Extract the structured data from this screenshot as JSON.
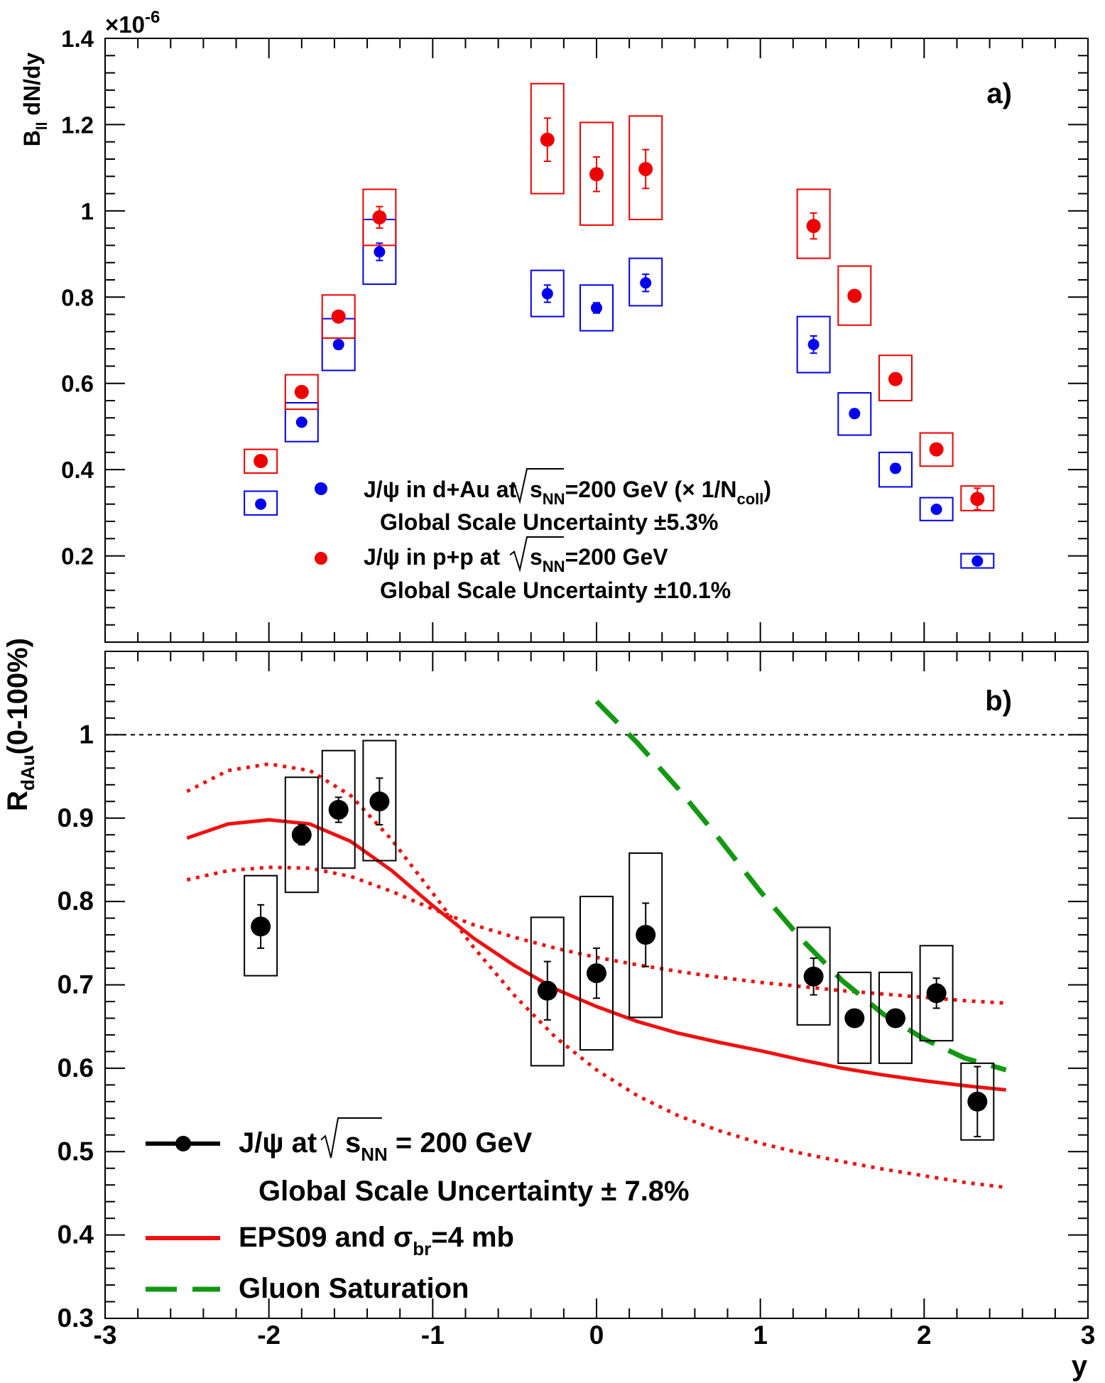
{
  "chart_data": [
    {
      "panel": "a)",
      "type": "scatter",
      "ylabel_main": "B",
      "ylabel_sub": "ll",
      "ylabel_rest": " dN/dy",
      "exponent_base": "×10",
      "exponent_power": "-6",
      "xlim": [
        -3,
        3
      ],
      "ylim": [
        0,
        1.4
      ],
      "yticks": [
        "0.2",
        "0.4",
        "0.6",
        "0.8",
        "1",
        "1.2",
        "1.4"
      ],
      "yticks_values": [
        0.2,
        0.4,
        0.6,
        0.8,
        1.0,
        1.2,
        1.4
      ],
      "series": [
        {
          "name": "J/ψ in d+Au at √sNN=200 GeV (× 1/Ncoll)",
          "color": "#0000ee",
          "x": [
            -2.05,
            -1.8,
            -1.575,
            -1.325,
            -0.3,
            0.0,
            0.3,
            1.325,
            1.575,
            1.825,
            2.075,
            2.325
          ],
          "y": [
            0.32,
            0.51,
            0.69,
            0.905,
            0.808,
            0.775,
            0.833,
            0.69,
            0.53,
            0.403,
            0.308,
            0.188
          ],
          "stat_err": [
            0.008,
            0.008,
            0.01,
            0.02,
            0.02,
            0.012,
            0.02,
            0.02,
            0.01,
            0.01,
            0.008,
            0.006
          ],
          "sys_box": [
            [
              0.295,
              0.35
            ],
            [
              0.465,
              0.555
            ],
            [
              0.63,
              0.75
            ],
            [
              0.83,
              0.98
            ],
            [
              0.755,
              0.862
            ],
            [
              0.722,
              0.828
            ],
            [
              0.78,
              0.89
            ],
            [
              0.625,
              0.755
            ],
            [
              0.48,
              0.578
            ],
            [
              0.36,
              0.44
            ],
            [
              0.282,
              0.335
            ],
            [
              0.172,
              0.205
            ]
          ]
        },
        {
          "name": "J/ψ in p+p at √sNN=200 GeV",
          "color": "#ee0000",
          "x": [
            -2.05,
            -1.8,
            -1.575,
            -1.325,
            -0.3,
            0.0,
            0.3,
            1.325,
            1.575,
            1.825,
            2.075,
            2.325
          ],
          "y": [
            0.42,
            0.58,
            0.755,
            0.985,
            1.165,
            1.085,
            1.097,
            0.965,
            0.803,
            0.61,
            0.447,
            0.332
          ],
          "stat_err": [
            0.008,
            0.01,
            0.01,
            0.025,
            0.05,
            0.04,
            0.045,
            0.03,
            0.01,
            0.01,
            0.01,
            0.025
          ],
          "sys_box": [
            [
              0.392,
              0.447
            ],
            [
              0.54,
              0.62
            ],
            [
              0.705,
              0.805
            ],
            [
              0.92,
              1.05
            ],
            [
              1.04,
              1.295
            ],
            [
              0.967,
              1.205
            ],
            [
              0.98,
              1.22
            ],
            [
              0.89,
              1.05
            ],
            [
              0.735,
              0.872
            ],
            [
              0.56,
              0.665
            ],
            [
              0.408,
              0.485
            ],
            [
              0.305,
              0.362
            ]
          ]
        }
      ],
      "legend": {
        "placement": "center-bottom",
        "entries": [
          {
            "color": "#0000ee",
            "pre": "J/ψ in d+Au at",
            "sub1": "s",
            "sub2": "NN",
            "post": "=200 GeV (× 1/N",
            "sub3": "coll",
            "end": ")",
            "note": "Global Scale Uncertainty ±5.3%"
          },
          {
            "color": "#ee0000",
            "pre": "J/ψ in p+p at",
            "sub1": "s",
            "sub2": "NN",
            "post": "=200 GeV",
            "note": "Global Scale Uncertainty ±10.1%"
          }
        ]
      }
    },
    {
      "panel": "b)",
      "type": "scatter",
      "ylabel_main": "R",
      "ylabel_sub": "dAu",
      "ylabel_rest": "(0-100%)",
      "xlabel": "y",
      "xlim": [
        -3,
        3
      ],
      "ylim": [
        0.3,
        1.1
      ],
      "xticks": [
        "-3",
        "-2",
        "-1",
        "0",
        "1",
        "2",
        "3"
      ],
      "xticks_values": [
        -3,
        -2,
        -1,
        0,
        1,
        2,
        3
      ],
      "yticks": [
        "0.3",
        "0.4",
        "0.5",
        "0.6",
        "0.7",
        "0.8",
        "0.9",
        "1"
      ],
      "yticks_values": [
        0.3,
        0.4,
        0.5,
        0.6,
        0.7,
        0.8,
        0.9,
        1.0
      ],
      "reference_line": 1.0,
      "series": [
        {
          "name": "J/ψ at √sNN = 200 GeV",
          "color": "#000000",
          "x": [
            -2.05,
            -1.8,
            -1.575,
            -1.325,
            -0.3,
            0.0,
            0.3,
            1.325,
            1.575,
            1.825,
            2.075,
            2.325
          ],
          "y": [
            0.77,
            0.88,
            0.91,
            0.92,
            0.693,
            0.714,
            0.76,
            0.71,
            0.66,
            0.66,
            0.69,
            0.56
          ],
          "stat_err": [
            0.026,
            0.012,
            0.015,
            0.028,
            0.035,
            0.03,
            0.038,
            0.022,
            0.008,
            0.008,
            0.018,
            0.042
          ],
          "sys_box": [
            [
              0.711,
              0.831
            ],
            [
              0.811,
              0.949
            ],
            [
              0.84,
              0.981
            ],
            [
              0.849,
              0.993
            ],
            [
              0.603,
              0.781
            ],
            [
              0.622,
              0.806
            ],
            [
              0.661,
              0.858
            ],
            [
              0.652,
              0.769
            ],
            [
              0.606,
              0.715
            ],
            [
              0.606,
              0.715
            ],
            [
              0.633,
              0.747
            ],
            [
              0.514,
              0.606
            ]
          ]
        },
        {
          "name": "EPS09 and σbr=4 mb",
          "color": "#ee1111",
          "style": "solid",
          "x": [
            -2.5,
            -2.25,
            -2.0,
            -1.75,
            -1.5,
            -1.25,
            -1.0,
            -0.75,
            -0.5,
            -0.25,
            0.0,
            0.25,
            0.5,
            0.75,
            1.0,
            1.25,
            1.5,
            1.75,
            2.0,
            2.25,
            2.5
          ],
          "y": [
            0.876,
            0.893,
            0.898,
            0.893,
            0.872,
            0.837,
            0.795,
            0.756,
            0.723,
            0.695,
            0.674,
            0.656,
            0.642,
            0.631,
            0.621,
            0.61,
            0.6,
            0.592,
            0.585,
            0.579,
            0.574
          ]
        },
        {
          "color": "#ee1111",
          "style": "dotted",
          "x": [
            -2.5,
            -2.25,
            -2.0,
            -1.75,
            -1.5,
            -1.25,
            -1.0,
            -0.75,
            -0.5,
            -0.25,
            0.0,
            0.25,
            0.5,
            0.75,
            1.0,
            1.25,
            1.5,
            1.75,
            2.0,
            2.25,
            2.5
          ],
          "y": [
            0.932,
            0.957,
            0.965,
            0.957,
            0.927,
            0.874,
            0.81,
            0.745,
            0.687,
            0.637,
            0.598,
            0.567,
            0.543,
            0.525,
            0.51,
            0.498,
            0.488,
            0.479,
            0.471,
            0.463,
            0.457
          ]
        },
        {
          "color": "#ee1111",
          "style": "dotted",
          "x": [
            -2.5,
            -2.25,
            -2.0,
            -1.75,
            -1.5,
            -1.25,
            -1.0,
            -0.75,
            -0.5,
            -0.25,
            0.0,
            0.25,
            0.5,
            0.75,
            1.0,
            1.25,
            1.5,
            1.75,
            2.0,
            2.25,
            2.5
          ],
          "y": [
            0.826,
            0.837,
            0.841,
            0.84,
            0.83,
            0.812,
            0.791,
            0.772,
            0.757,
            0.744,
            0.733,
            0.724,
            0.716,
            0.709,
            0.703,
            0.698,
            0.693,
            0.689,
            0.685,
            0.681,
            0.678
          ]
        },
        {
          "name": "Gluon Saturation",
          "color": "#119911",
          "style": "dashed",
          "x": [
            0.0,
            0.25,
            0.5,
            0.75,
            1.0,
            1.25,
            1.5,
            1.75,
            2.0,
            2.25,
            2.5
          ],
          "y": [
            1.04,
            0.99,
            0.935,
            0.875,
            0.812,
            0.755,
            0.705,
            0.665,
            0.635,
            0.612,
            0.598
          ]
        }
      ],
      "legend": {
        "placement": "bottom-left",
        "entries": [
          {
            "kind": "marker",
            "color": "#000000",
            "pre": "J/ψ at",
            "sub1": "s",
            "sub2": "NN",
            "post": " = 200 GeV",
            "note": "Global Scale Uncertainty ± 7.8%"
          },
          {
            "kind": "solid",
            "color": "#ee1111",
            "pre": "EPS09 and σ",
            "sub1": "br",
            "post": "=4 mb"
          },
          {
            "kind": "dashed",
            "color": "#119911",
            "pre": "Gluon Saturation"
          }
        ]
      }
    }
  ]
}
